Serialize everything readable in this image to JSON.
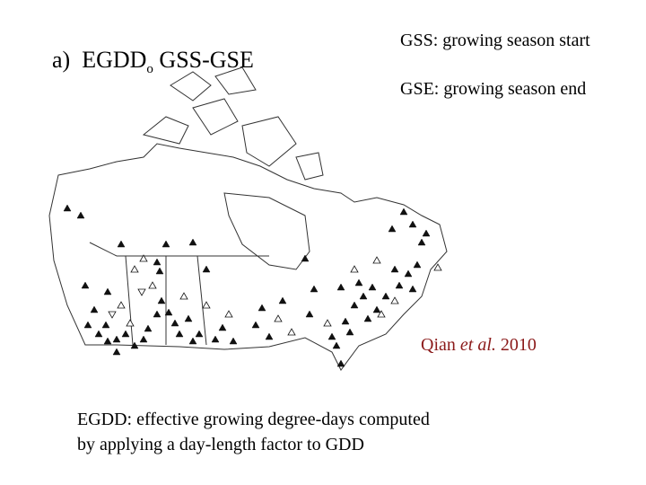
{
  "panel": {
    "label": "a)",
    "title_main": "EGDD",
    "title_sub": "o",
    "title_rest": "GSS-GSE"
  },
  "legend": [
    "GSS: growing season start",
    "GSE: growing season end"
  ],
  "citation": {
    "author": "Qian",
    "etal": "et al.",
    "year": "2010"
  },
  "caption": [
    "EGDD: effective growing degree-days computed",
    "by applying a day-length factor to GDD"
  ]
}
